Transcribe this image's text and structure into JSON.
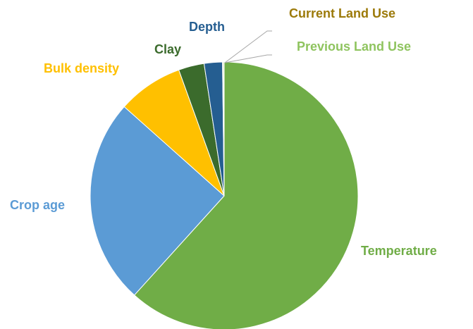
{
  "chart_data": {
    "type": "pie",
    "categories": [
      "Temperature",
      "Crop age",
      "Bulk density",
      "Clay",
      "Depth",
      "Current Land Use",
      "Previous Land Use"
    ],
    "values": [
      61.7,
      24.9,
      7.9,
      3.1,
      2.2,
      0.1,
      0.1
    ],
    "colors": [
      "#70ad47",
      "#5b9bd5",
      "#ffc000",
      "#3b6b2c",
      "#255e91",
      "#9c7a0a",
      "#8fc45f"
    ]
  }
}
